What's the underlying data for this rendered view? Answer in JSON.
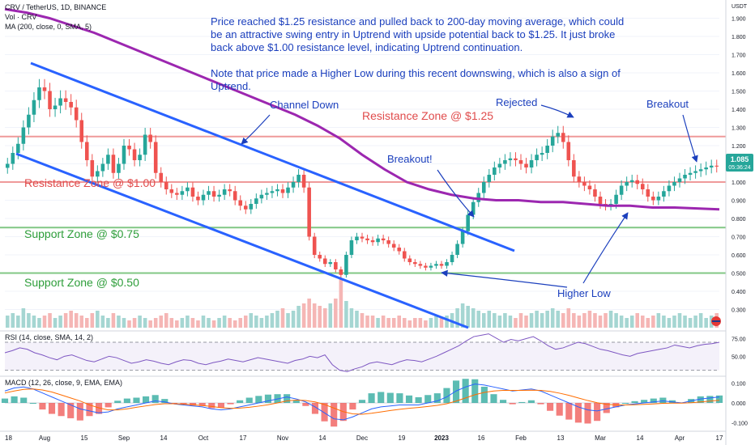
{
  "header": {
    "symbol_line": "CRV / TetherUS, 1D, BINANCE",
    "vol_line": "Vol · CRV",
    "ma_line": "MA (200, close, 0, SMA, 5)",
    "rsi_line": "RSI (14, close, SMA, 14, 2)",
    "macd_line": "MACD (12, 26, close, 9, EMA, EMA)"
  },
  "price_badge": {
    "value": "1.085",
    "countdown": "05:36:24",
    "color": "#26a69a"
  },
  "colors": {
    "up": "#26a69a",
    "down": "#ef5350",
    "ma": "#9c27b0",
    "channel": "#2962ff",
    "resistance": "#ef9a9a",
    "support": "#81c784",
    "note": "#1b3fbd"
  },
  "annotations": {
    "note_p1": "Price reached $1.25 resistance and pulled back to 200-day moving average, which could be an attractive swing entry in Uptrend with upside potential back to $1.25. It just broke back above $1.00 resistance level, indicating Uptrend continuation.",
    "note_p2": "Note that price made a Higher Low during this recent downswing, which is also a sign of Uptrend.",
    "channel_down": "Channel Down",
    "resistance_125": "Resistance Zone @ $1.25",
    "resistance_100": "Resistance Zone @ $1.00",
    "support_075": "Support Zone @ $0.75",
    "support_050": "Support Zone @ $0.50",
    "breakout1": "Breakout!",
    "rejected": "Rejected",
    "breakout2": "Breakout",
    "higher_low": "Higher Low"
  },
  "chart_data": [
    {
      "type": "candlestick",
      "title": "CRV / TetherUS, 1D, BINANCE",
      "ylabel": "USDT",
      "ylim": [
        0.2,
        2.0
      ],
      "y_ticks": [
        "1.900",
        "1.800",
        "1.700",
        "1.600",
        "1.500",
        "1.400",
        "1.300",
        "1.200",
        "1.100",
        "1.000",
        "0.900",
        "0.800",
        "0.700",
        "0.600",
        "0.500",
        "0.400",
        "0.300"
      ],
      "x_ticks": [
        "18",
        "Aug",
        "15",
        "Sep",
        "14",
        "Oct",
        "17",
        "Nov",
        "14",
        "Dec",
        "19",
        "2023",
        "16",
        "Feb",
        "13",
        "Mar",
        "14",
        "Apr",
        "17"
      ],
      "horizontal_levels": [
        1.25,
        1.0,
        0.75,
        0.5
      ],
      "close": [
        1.1,
        1.16,
        1.21,
        1.3,
        1.37,
        1.45,
        1.52,
        1.5,
        1.4,
        1.42,
        1.46,
        1.44,
        1.41,
        1.34,
        1.22,
        1.12,
        1.03,
        1.06,
        1.1,
        1.15,
        1.05,
        1.1,
        1.2,
        1.18,
        1.12,
        1.15,
        1.26,
        1.22,
        1.05,
        1.0,
        0.96,
        0.94,
        0.93,
        0.95,
        0.97,
        0.92,
        0.9,
        0.93,
        0.95,
        0.92,
        0.93,
        0.96,
        0.95,
        0.9,
        0.87,
        0.85,
        0.88,
        0.91,
        0.93,
        0.94,
        0.95,
        0.96,
        0.94,
        0.97,
        1.0,
        1.04,
        0.97,
        0.7,
        0.6,
        0.58,
        0.55,
        0.56,
        0.52,
        0.49,
        0.6,
        0.68,
        0.7,
        0.69,
        0.68,
        0.67,
        0.69,
        0.68,
        0.66,
        0.64,
        0.62,
        0.58,
        0.56,
        0.55,
        0.54,
        0.53,
        0.54,
        0.55,
        0.54,
        0.56,
        0.6,
        0.66,
        0.73,
        0.82,
        0.89,
        0.94,
        1.0,
        1.04,
        1.08,
        1.1,
        1.12,
        1.13,
        1.12,
        1.1,
        1.08,
        1.12,
        1.15,
        1.16,
        1.2,
        1.25,
        1.27,
        1.22,
        1.12,
        1.03,
        1.0,
        0.98,
        0.96,
        0.92,
        0.88,
        0.87,
        0.88,
        0.93,
        0.98,
        1.0,
        1.01,
        0.99,
        0.96,
        0.92,
        0.9,
        0.92,
        0.95,
        0.98,
        1.0,
        1.02,
        1.04,
        1.05,
        1.06,
        1.07,
        1.08,
        1.09,
        1.085
      ]
    },
    {
      "type": "line",
      "title": "MA (200, close, 0, SMA, 5)",
      "values": [
        1.95,
        1.93,
        1.9,
        1.86,
        1.82,
        1.77,
        1.72,
        1.67,
        1.62,
        1.57,
        1.52,
        1.47,
        1.42,
        1.37,
        1.31,
        1.24,
        1.15,
        1.07,
        1.0,
        0.96,
        0.93,
        0.91,
        0.9,
        0.9,
        0.89,
        0.89,
        0.88,
        0.87,
        0.87,
        0.86,
        0.86,
        0.855,
        0.85
      ]
    },
    {
      "type": "bar",
      "title": "Vol · CRV",
      "note": "volume histogram, relative units",
      "values": [
        0.25,
        0.3,
        0.25,
        0.4,
        0.3,
        0.25,
        0.2,
        0.25,
        0.3,
        0.2,
        0.25,
        0.3,
        0.35,
        0.3,
        0.25,
        0.2,
        0.3,
        0.35,
        0.25,
        0.2,
        0.3,
        0.25,
        0.2,
        0.15,
        0.2,
        0.25,
        0.2,
        0.15,
        0.2,
        0.25,
        0.3,
        0.2,
        0.15,
        0.2,
        0.25,
        0.2,
        0.15,
        0.25,
        0.2,
        0.15,
        0.2,
        0.25,
        0.2,
        0.15,
        0.2,
        0.25,
        0.3,
        0.25,
        0.2,
        0.25,
        0.3,
        0.35,
        0.4,
        0.3,
        0.35,
        0.45,
        0.5,
        0.6,
        0.5,
        0.45,
        0.4,
        0.5,
        0.6,
        1.0,
        0.55,
        0.4,
        0.35,
        0.3,
        0.25,
        0.25,
        0.2,
        0.25,
        0.2,
        0.2,
        0.25,
        0.2,
        0.15,
        0.2,
        0.2,
        0.15,
        0.2,
        0.25,
        0.2,
        0.25,
        0.3,
        0.4,
        0.5,
        0.45,
        0.4,
        0.35,
        0.3,
        0.35,
        0.3,
        0.25,
        0.3,
        0.25,
        0.2,
        0.3,
        0.25,
        0.3,
        0.35,
        0.3,
        0.35,
        0.4,
        0.35,
        0.3,
        0.4,
        0.3,
        0.25,
        0.3,
        0.35,
        0.3,
        0.25,
        0.3,
        0.35,
        0.3,
        0.25,
        0.2,
        0.25,
        0.3,
        0.25,
        0.2,
        0.25,
        0.3,
        0.25,
        0.2,
        0.25,
        0.3,
        0.25,
        0.2,
        0.25,
        0.3,
        0.2,
        0.25,
        0.3
      ]
    },
    {
      "type": "line",
      "title": "RSI (14, close, SMA, 14, 2)",
      "ylim": [
        25,
        85
      ],
      "y_ticks": [
        "75.00",
        "50.00"
      ],
      "bands": [
        70,
        30
      ],
      "values": [
        55,
        58,
        62,
        60,
        55,
        52,
        48,
        45,
        50,
        52,
        48,
        44,
        42,
        46,
        50,
        48,
        44,
        40,
        42,
        45,
        43,
        40,
        38,
        42,
        45,
        44,
        40,
        38,
        41,
        43,
        46,
        44,
        42,
        45,
        48,
        46,
        44,
        42,
        40,
        44,
        46,
        50,
        48,
        52,
        38,
        30,
        28,
        32,
        35,
        40,
        42,
        40,
        38,
        42,
        45,
        44,
        42,
        46,
        50,
        55,
        60,
        65,
        72,
        78,
        80,
        82,
        76,
        70,
        74,
        72,
        75,
        78,
        72,
        65,
        60,
        62,
        66,
        70,
        68,
        64,
        60,
        58,
        55,
        52,
        50,
        54,
        56,
        58,
        60,
        62,
        66,
        64,
        62,
        65,
        67,
        68,
        70
      ]
    },
    {
      "type": "line",
      "title": "MACD (12, 26, close, 9, EMA, EMA)",
      "ylim": [
        -0.13,
        0.13
      ],
      "y_ticks": [
        "0.100",
        "0.000",
        "-0.100"
      ],
      "macd": [
        0.06,
        0.075,
        0.08,
        0.07,
        0.05,
        0.03,
        0.01,
        -0.01,
        -0.03,
        -0.04,
        -0.05,
        -0.045,
        -0.03,
        -0.02,
        -0.01,
        0,
        0.01,
        0.005,
        -0.005,
        -0.01,
        -0.015,
        -0.02,
        -0.03,
        -0.035,
        -0.03,
        -0.02,
        -0.01,
        0,
        0.01,
        0.02,
        0.03,
        0.02,
        0.005,
        -0.02,
        -0.05,
        -0.08,
        -0.085,
        -0.07,
        -0.05,
        -0.03,
        -0.02,
        -0.015,
        -0.01,
        -0.01,
        -0.01,
        0,
        0.01,
        0.03,
        0.06,
        0.08,
        0.095,
        0.09,
        0.08,
        0.07,
        0.06,
        0.065,
        0.07,
        0.06,
        0.04,
        0.02,
        0,
        -0.02,
        -0.035,
        -0.04,
        -0.03,
        -0.02,
        -0.01,
        -0.005,
        0,
        0.005,
        0.01,
        0.005,
        0,
        0.01,
        0.02,
        0.025,
        0.03
      ],
      "signal": [
        0.05,
        0.06,
        0.068,
        0.07,
        0.065,
        0.055,
        0.04,
        0.025,
        0.01,
        -0.01,
        -0.025,
        -0.035,
        -0.035,
        -0.03,
        -0.022,
        -0.015,
        -0.008,
        -0.004,
        -0.004,
        -0.006,
        -0.009,
        -0.013,
        -0.018,
        -0.024,
        -0.027,
        -0.026,
        -0.022,
        -0.016,
        -0.009,
        0,
        0.01,
        0.014,
        0.012,
        0.005,
        -0.008,
        -0.026,
        -0.044,
        -0.055,
        -0.057,
        -0.052,
        -0.045,
        -0.038,
        -0.032,
        -0.027,
        -0.023,
        -0.018,
        -0.012,
        -0.004,
        0.009,
        0.025,
        0.041,
        0.053,
        0.06,
        0.063,
        0.063,
        0.063,
        0.064,
        0.063,
        0.058,
        0.049,
        0.038,
        0.025,
        0.012,
        0.001,
        -0.007,
        -0.01,
        -0.01,
        -0.009,
        -0.007,
        -0.005,
        -0.002,
        -0.001,
        -0.001,
        0.001,
        0.005,
        0.009,
        0.013
      ]
    }
  ]
}
